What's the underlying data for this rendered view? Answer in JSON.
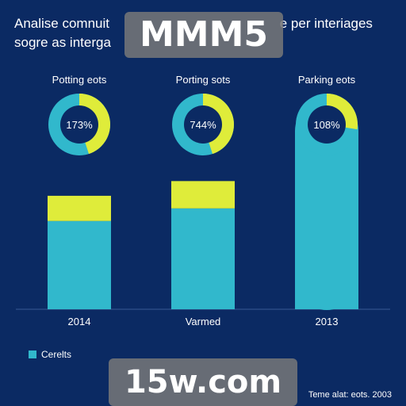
{
  "header": {
    "title_line1": "Analise comnuit",
    "title_line1_right": "e per interiages",
    "title_line2": "sogre as interga"
  },
  "watermarks": {
    "top": "MMM5",
    "bottom": "15w.com"
  },
  "legend": {
    "label": "Cerelts"
  },
  "footer": {
    "note": "Teme alat: eots. 2003"
  },
  "colors": {
    "background": "#0b2a63",
    "teal": "#31b8cc",
    "yellow": "#dfec3a"
  },
  "chart_data": {
    "type": "bar",
    "categories": [
      "2014",
      "Varmed",
      "2013"
    ],
    "series": [
      {
        "name": "Cerelts",
        "values": [
          42,
          48,
          100
        ]
      },
      {
        "values": [
          12,
          13,
          0
        ]
      }
    ],
    "ylim": [
      0,
      100
    ],
    "xlabel": "",
    "ylabel": "",
    "donuts": [
      {
        "label": "Potting eots",
        "text": "173%"
      },
      {
        "label": "Porting sots",
        "text": "744%"
      },
      {
        "label": "Parking eots",
        "text": "108%"
      }
    ]
  }
}
